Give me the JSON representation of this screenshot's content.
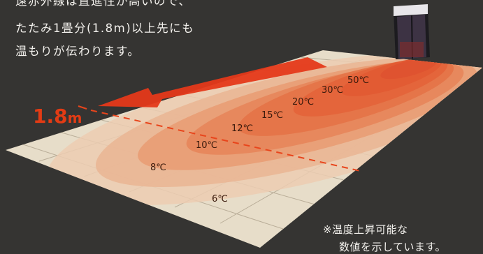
{
  "intro": {
    "line1": "遠赤外線は直進性が高いので、",
    "line2": "たたみ1畳分(1.8m)以上先にも",
    "line3": "温もりが伝わります。"
  },
  "distance": {
    "value": "1.8",
    "unit": "m"
  },
  "temperature_zones": [
    {
      "label": "50℃"
    },
    {
      "label": "30℃"
    },
    {
      "label": "20℃"
    },
    {
      "label": "15℃"
    },
    {
      "label": "12℃"
    },
    {
      "label": "10℃"
    },
    {
      "label": "8℃"
    },
    {
      "label": "6℃"
    }
  ],
  "footnote": {
    "line1": "※温度上昇可能な",
    "line2": "数値を示しています。"
  },
  "colors": {
    "background": "#353432",
    "floor": "#e7ddc9",
    "heat_core": "#e2612d",
    "arrow": "#e5391a",
    "text_light": "#f2f0ec"
  }
}
